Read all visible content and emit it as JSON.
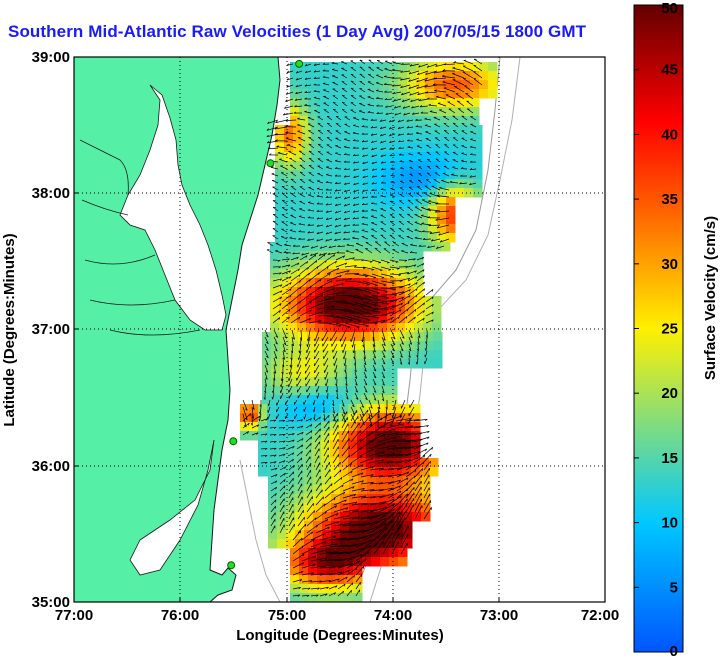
{
  "title": "Southern Mid-Atlantic Raw Velocities (1 Day Avg) 2007/05/15 1800 GMT",
  "map": {
    "xlabel": "Longitude (Degrees:Minutes)",
    "ylabel": "Latitude (Degrees:Minutes)",
    "x_ticks": [
      "77:00",
      "76:00",
      "75:00",
      "74:00",
      "73:00",
      "72:00"
    ],
    "y_ticks": [
      "39:00",
      "38:00",
      "37:00",
      "36:00",
      "35:00"
    ],
    "lon_range": [
      -77,
      -72
    ],
    "lat_range": [
      35,
      39
    ],
    "grid": true,
    "land_color": "#55f0a6",
    "water_color": "#ffffff"
  },
  "colorbar": {
    "label": "Surface Velocity (cm/s)",
    "ticks": [
      "50",
      "45",
      "40",
      "35",
      "30",
      "25",
      "20",
      "15",
      "10",
      "5",
      "0"
    ],
    "range": [
      0,
      50
    ],
    "colormap": [
      "#0055ff",
      "#00c8ff",
      "#fff000",
      "#ff6400",
      "#ff0000",
      "#640000"
    ]
  },
  "stations": [
    {
      "lon": -74.88,
      "lat": 38.95
    },
    {
      "lon": -75.15,
      "lat": 38.22
    },
    {
      "lon": -75.5,
      "lat": 36.18
    },
    {
      "lon": -75.52,
      "lat": 35.27
    }
  ]
}
